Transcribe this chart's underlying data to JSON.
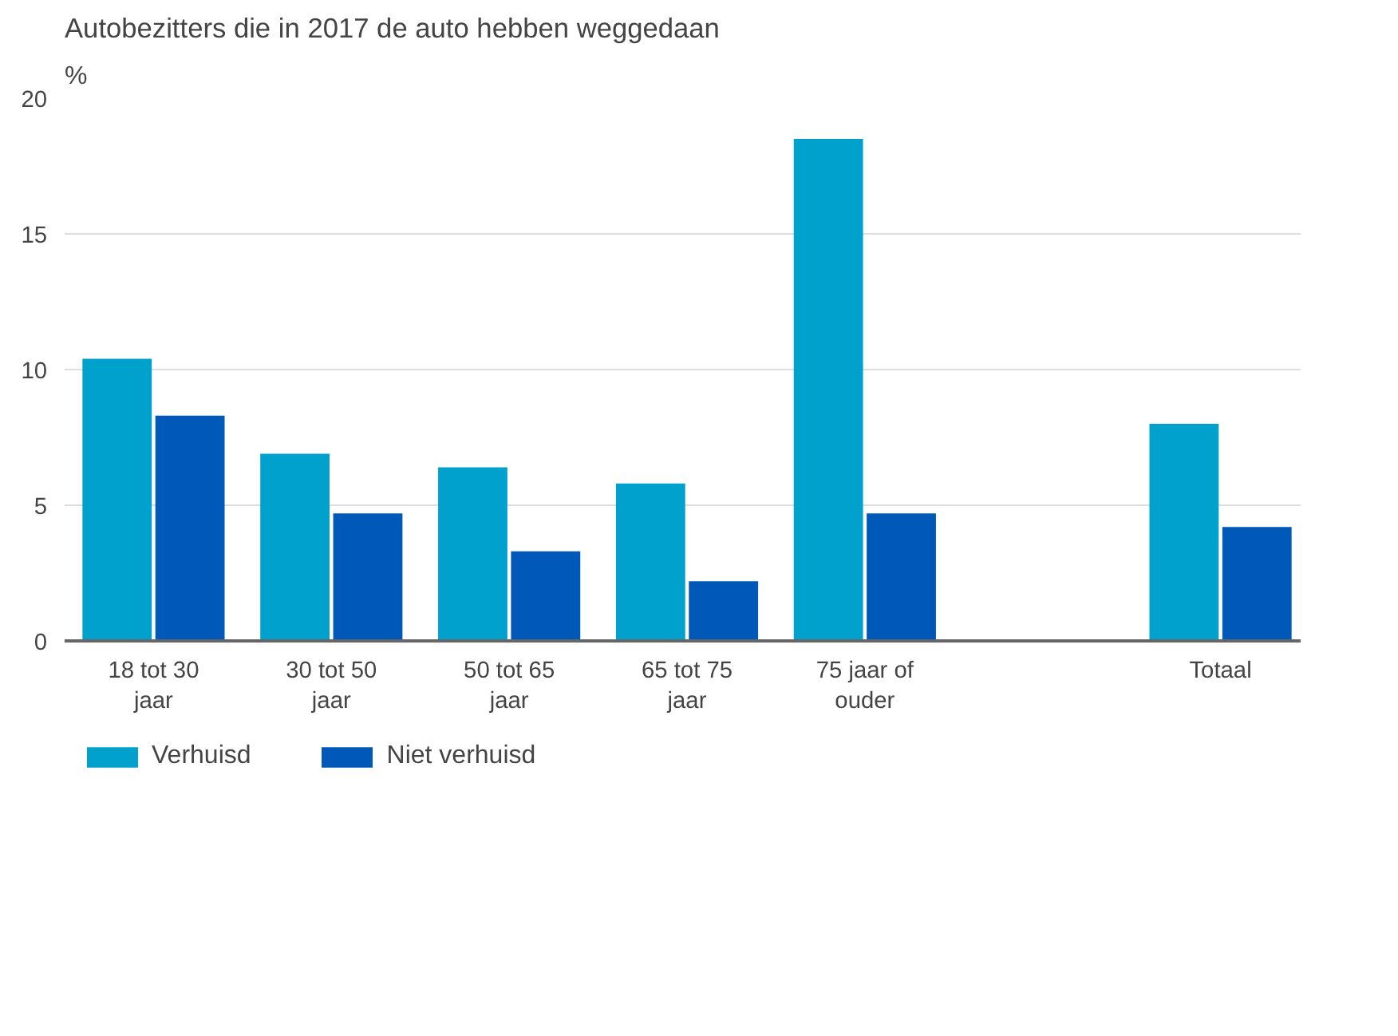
{
  "chart_data": {
    "type": "bar",
    "title": "Autobezitters die in 2017 de auto hebben weggedaan",
    "ylabel": "%",
    "categories": [
      "18 tot 30 jaar",
      "30 tot 50 jaar",
      "50 tot 65 jaar",
      "65 tot 75 jaar",
      "75 jaar of ouder",
      null,
      "Totaal"
    ],
    "series": [
      {
        "name": "Verhuisd",
        "color": "#00a1cd",
        "values": [
          10.4,
          6.9,
          6.4,
          5.8,
          18.5,
          null,
          8.0
        ]
      },
      {
        "name": "Niet verhuisd",
        "color": "#0058b8",
        "values": [
          8.3,
          4.7,
          3.3,
          2.2,
          4.7,
          null,
          4.2
        ]
      }
    ],
    "ylim": [
      0,
      20
    ],
    "yticks": [
      0,
      5,
      10,
      15,
      20
    ],
    "grid": "y",
    "legend": "bottom"
  }
}
